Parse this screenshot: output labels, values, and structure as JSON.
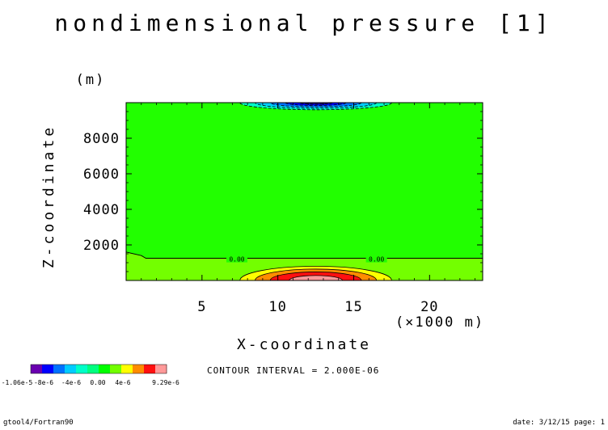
{
  "chart_data": {
    "type": "heatmap",
    "title": "nondimensional pressure [1]",
    "xlabel": "X-coordinate",
    "ylabel": "Z-coordinate",
    "x_units": "(×1000 m)",
    "y_units": "(m)",
    "xlim": [
      0,
      23.5
    ],
    "ylim": [
      0,
      10000
    ],
    "x_ticks": [
      5,
      10,
      15,
      20
    ],
    "y_ticks": [
      2000,
      4000,
      6000,
      8000
    ],
    "contour_interval_text": "CONTOUR INTERVAL = 2.000E-06",
    "contour_labels": [
      {
        "x": 7.3,
        "z": 1200,
        "text": "0.00"
      },
      {
        "x": 16.5,
        "z": 1200,
        "text": "0.00"
      }
    ],
    "zero_contour": [
      [
        0,
        1600
      ],
      [
        1,
        1400
      ],
      [
        1.3,
        1250
      ],
      [
        2,
        1250
      ],
      [
        23.5,
        1250
      ]
    ],
    "anomalies": [
      {
        "name": "top-low",
        "center_x": 12.5,
        "top_z": 10000,
        "rx": 5.0,
        "rz": 400,
        "min_value": -1.06e-05
      },
      {
        "name": "bottom-high",
        "center_x": 12.5,
        "bottom_z": 0,
        "rx": 5.0,
        "rz": 800,
        "max_value": 9.29e-06
      }
    ],
    "colorbar": {
      "colors": [
        "#6a00b0",
        "#0000ff",
        "#0072ff",
        "#00ccff",
        "#00ffc8",
        "#00ff80",
        "#00ff00",
        "#73ff00",
        "#ffff00",
        "#ff8c00",
        "#ff1010",
        "#ff9999"
      ],
      "labels": [
        "-1.06e-5",
        "-8e-6",
        "-4e-6",
        "0.00",
        "4e-6",
        "9.29e-6"
      ]
    },
    "background_color": "#22ff00",
    "bottom_strip_color": "#73ff00"
  },
  "footer": {
    "left": "gtool4/Fortran90",
    "right": "date: 3/12/15 page: 1"
  }
}
